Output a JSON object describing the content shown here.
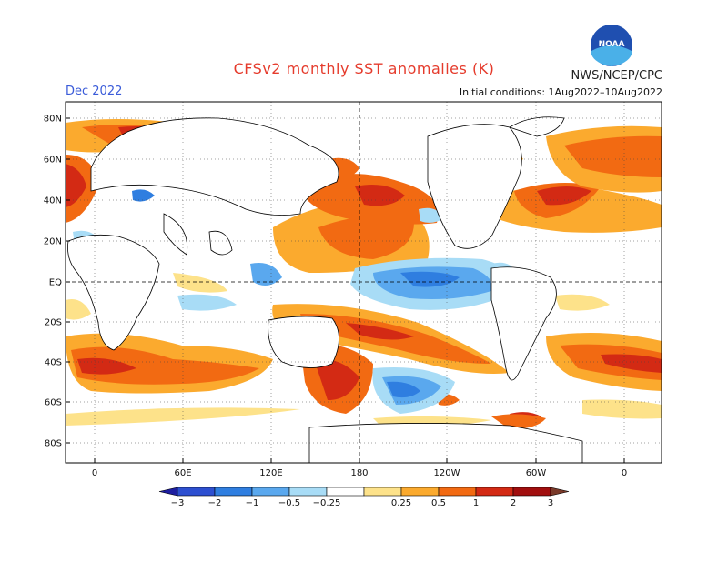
{
  "title": "CFSv2 monthly SST anomalies (K)",
  "org": "NWS/NCEP/CPC",
  "logo_text": "NOAA",
  "month": "Dec 2022",
  "initial_conditions": "Initial conditions: 1Aug2022–10Aug2022",
  "lat_labels": [
    "80N",
    "60N",
    "40N",
    "20N",
    "EQ",
    "20S",
    "40S",
    "60S",
    "80S"
  ],
  "lon_labels": [
    "0",
    "60E",
    "120E",
    "180",
    "120W",
    "60W",
    "0"
  ],
  "colorbar": {
    "labels": [
      "−3",
      "−2",
      "−1",
      "−0.5",
      "−0.25",
      "0.25",
      "0.5",
      "1",
      "2",
      "3"
    ],
    "colors": [
      "#1e1ea0",
      "#2d4fd0",
      "#2f7ee0",
      "#5aa8ee",
      "#a8dcf6",
      "#ffffff",
      "#fde28a",
      "#fbaa2e",
      "#f26a12",
      "#d32a14",
      "#a10e0e",
      "#7a3a2a"
    ]
  }
}
